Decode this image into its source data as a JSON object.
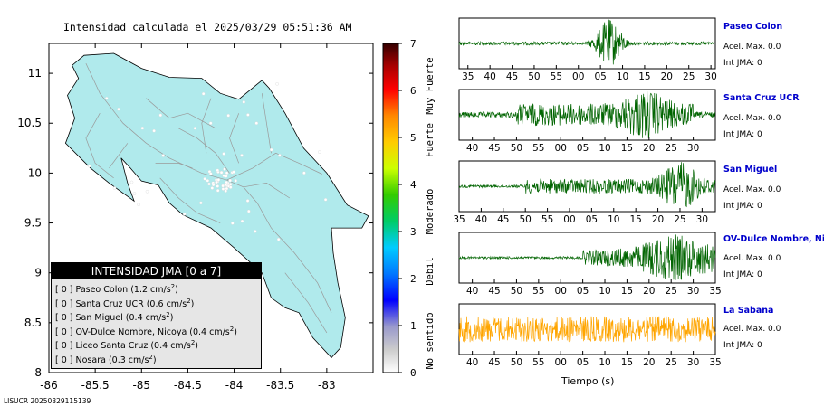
{
  "map": {
    "title": "Intensidad calculada el 2025/03/29_05:51:36_AM",
    "x_ticks": [
      "-86",
      "-85.5",
      "-85",
      "-84.5",
      "-84",
      "-83.5",
      "-83"
    ],
    "y_ticks": [
      "11",
      "10.5",
      "10",
      "9.5",
      "9",
      "8.5",
      "8"
    ],
    "land_color": "#b0eaec",
    "legend": {
      "title": "INTENSIDAD JMA [0 a 7]",
      "items": [
        {
          "label": "[ 0 ]  Paseo Colon (1.2 cm/s",
          "sup": "2",
          "close": ")"
        },
        {
          "label": "[ 0 ]  Santa Cruz UCR (0.6 cm/s",
          "sup": "2",
          "close": ")"
        },
        {
          "label": "[ 0 ]  San Miguel (0.4 cm/s",
          "sup": "2",
          "close": ")"
        },
        {
          "label": "[ 0 ]  OV-Dulce Nombre, Nicoya (0.4 cm/s",
          "sup": "2",
          "close": ")"
        },
        {
          "label": "[ 0 ]  Liceo Santa Cruz (0.4 cm/s",
          "sup": "2",
          "close": ")"
        },
        {
          "label": "[ 0 ]  Nosara (0.3 cm/s",
          "sup": "2",
          "close": ")"
        }
      ]
    }
  },
  "scale": {
    "ticks": [
      "7",
      "6",
      "5",
      "4",
      "3",
      "2",
      "1",
      "0"
    ],
    "labels": [
      "Muy Fuerte",
      "Fuerte",
      "Moderado",
      "Debil",
      "No sentido"
    ]
  },
  "traces": [
    {
      "name": "Paseo Colon",
      "acel": "Acel. Max. 0.0",
      "int": "Int JMA: 0",
      "color": "#006400",
      "ticks": [
        "35",
        "40",
        "45",
        "50",
        "55",
        "00",
        "05",
        "10",
        "15",
        "20",
        "25",
        "30"
      ]
    },
    {
      "name": "Santa Cruz UCR",
      "acel": "Acel. Max. 0.0",
      "int": "Int JMA: 0",
      "color": "#006400",
      "ticks": [
        "40",
        "45",
        "50",
        "55",
        "00",
        "05",
        "10",
        "15",
        "20",
        "25",
        "30"
      ]
    },
    {
      "name": "San Miguel",
      "acel": "Acel. Max. 0.0",
      "int": "Int JMA: 0",
      "color": "#006400",
      "ticks": [
        "35",
        "40",
        "45",
        "50",
        "55",
        "00",
        "05",
        "10",
        "15",
        "20",
        "25",
        "30"
      ]
    },
    {
      "name": "OV-Dulce Nombre, Nicoya",
      "acel": "Acel. Max. 0.0",
      "int": "Int JMA: 0",
      "color": "#006400",
      "ticks": [
        "40",
        "45",
        "50",
        "55",
        "00",
        "05",
        "10",
        "15",
        "20",
        "25",
        "30",
        "35"
      ]
    },
    {
      "name": "La Sabana",
      "acel": "Acel. Max. 0.0",
      "int": "Int JMA: 0",
      "color": "#ffa500",
      "ticks": [
        "40",
        "45",
        "50",
        "55",
        "00",
        "05",
        "10",
        "15",
        "20",
        "25",
        "30",
        "35"
      ]
    }
  ],
  "x_title": "Tiempo (s)",
  "footer": "LISUCR 20250329115139",
  "chart_data": [
    {
      "type": "scatter",
      "title": "Intensidad calculada el 2025/03/29_05:51:36_AM",
      "xlim": [
        -86,
        -82.5
      ],
      "ylim": [
        8,
        11.3
      ],
      "colorbar": {
        "range": [
          0,
          7
        ]
      }
    },
    {
      "type": "line",
      "series_name": "Paseo Colon",
      "x_ticks": [
        "35",
        "40",
        "45",
        "50",
        "55",
        "00",
        "05",
        "10",
        "15",
        "20",
        "25",
        "30"
      ]
    },
    {
      "type": "line",
      "series_name": "Santa Cruz UCR",
      "x_ticks": [
        "40",
        "45",
        "50",
        "55",
        "00",
        "05",
        "10",
        "15",
        "20",
        "25",
        "30"
      ]
    },
    {
      "type": "line",
      "series_name": "San Miguel",
      "x_ticks": [
        "35",
        "40",
        "45",
        "50",
        "55",
        "00",
        "05",
        "10",
        "15",
        "20",
        "25",
        "30"
      ]
    },
    {
      "type": "line",
      "series_name": "OV-Dulce Nombre, Nicoya",
      "x_ticks": [
        "40",
        "45",
        "50",
        "55",
        "00",
        "05",
        "10",
        "15",
        "20",
        "25",
        "30",
        "35"
      ]
    },
    {
      "type": "line",
      "series_name": "La Sabana",
      "x_ticks": [
        "40",
        "45",
        "50",
        "55",
        "00",
        "05",
        "10",
        "15",
        "20",
        "25",
        "30",
        "35"
      ]
    }
  ]
}
